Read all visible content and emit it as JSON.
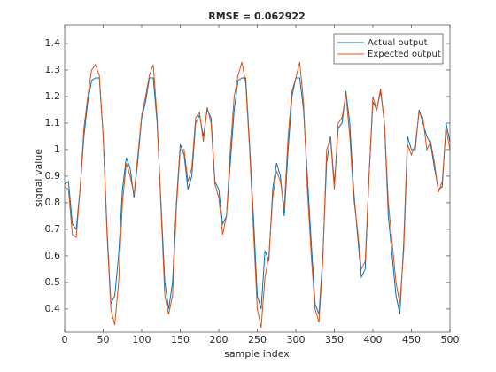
{
  "chart_data": {
    "type": "line",
    "title": "RMSE = 0.062922",
    "x_label": "sample index",
    "y_label": "signal value",
    "x": [
      0,
      5,
      10,
      15,
      20,
      25,
      30,
      35,
      40,
      45,
      50,
      55,
      60,
      65,
      70,
      75,
      80,
      85,
      90,
      95,
      100,
      105,
      110,
      115,
      120,
      125,
      130,
      135,
      140,
      145,
      150,
      155,
      160,
      165,
      170,
      175,
      180,
      185,
      190,
      195,
      200,
      205,
      210,
      215,
      220,
      225,
      230,
      235,
      240,
      245,
      250,
      255,
      260,
      265,
      270,
      275,
      280,
      285,
      290,
      295,
      300,
      305,
      310,
      315,
      320,
      325,
      330,
      335,
      340,
      345,
      350,
      355,
      360,
      365,
      370,
      375,
      380,
      385,
      390,
      395,
      400,
      405,
      410,
      415,
      420,
      425,
      430,
      435,
      440,
      445,
      450,
      455,
      460,
      465,
      470,
      475,
      480,
      485,
      490,
      495,
      500
    ],
    "series": [
      {
        "name": "Actual output",
        "color": "#0072bd",
        "values": [
          0.87,
          0.88,
          0.72,
          0.7,
          0.85,
          1.05,
          1.18,
          1.26,
          1.27,
          1.27,
          1.05,
          0.7,
          0.42,
          0.45,
          0.6,
          0.85,
          0.97,
          0.93,
          0.82,
          0.96,
          1.12,
          1.18,
          1.27,
          1.27,
          1.1,
          0.8,
          0.5,
          0.4,
          0.5,
          0.8,
          1.02,
          0.98,
          0.85,
          0.9,
          1.1,
          1.13,
          1.05,
          1.15,
          1.12,
          0.88,
          0.85,
          0.72,
          0.75,
          0.95,
          1.15,
          1.26,
          1.27,
          1.27,
          1.02,
          0.75,
          0.45,
          0.4,
          0.62,
          0.58,
          0.85,
          0.95,
          0.9,
          0.75,
          1.0,
          1.2,
          1.27,
          1.27,
          1.15,
          0.9,
          0.65,
          0.42,
          0.38,
          0.6,
          0.95,
          1.05,
          0.87,
          1.08,
          1.1,
          1.22,
          1.1,
          0.85,
          0.68,
          0.52,
          0.55,
          0.9,
          1.18,
          1.15,
          1.22,
          1.1,
          0.75,
          0.6,
          0.45,
          0.38,
          0.65,
          1.05,
          1.0,
          1.0,
          1.15,
          1.1,
          1.05,
          1.02,
          0.93,
          0.85,
          0.86,
          1.1,
          1.03
        ]
      },
      {
        "name": "Expected output",
        "color": "#d95319",
        "values": [
          0.86,
          0.85,
          0.68,
          0.67,
          0.85,
          1.08,
          1.2,
          1.3,
          1.32,
          1.28,
          1.05,
          0.68,
          0.4,
          0.34,
          0.5,
          0.8,
          0.95,
          0.9,
          0.83,
          0.98,
          1.13,
          1.2,
          1.28,
          1.32,
          1.12,
          0.78,
          0.45,
          0.38,
          0.45,
          0.78,
          1.0,
          1.0,
          0.88,
          0.93,
          1.12,
          1.14,
          1.03,
          1.16,
          1.1,
          0.87,
          0.82,
          0.68,
          0.75,
          1.0,
          1.2,
          1.28,
          1.33,
          1.25,
          1.0,
          0.7,
          0.4,
          0.33,
          0.52,
          0.6,
          0.82,
          0.92,
          0.88,
          0.78,
          1.05,
          1.22,
          1.27,
          1.33,
          1.18,
          0.85,
          0.6,
          0.4,
          0.35,
          0.58,
          1.0,
          1.04,
          0.85,
          1.1,
          1.12,
          1.21,
          1.05,
          0.82,
          0.7,
          0.55,
          0.58,
          0.9,
          1.2,
          1.15,
          1.23,
          1.1,
          0.8,
          0.65,
          0.5,
          0.42,
          0.62,
          1.02,
          0.98,
          1.02,
          1.14,
          1.12,
          1.0,
          1.03,
          0.95,
          0.84,
          0.88,
          1.08,
          1.0
        ]
      }
    ],
    "xlim": [
      0,
      500
    ],
    "xticks": [
      0,
      50,
      100,
      150,
      200,
      250,
      300,
      350,
      400,
      450,
      500
    ],
    "ylim": [
      0.313,
      1.47
    ],
    "yticks": [
      0.4,
      0.5,
      0.6,
      0.7,
      0.8,
      0.9,
      1,
      1.1,
      1.2,
      1.3,
      1.4
    ],
    "legend": "upper right",
    "grid": false
  }
}
